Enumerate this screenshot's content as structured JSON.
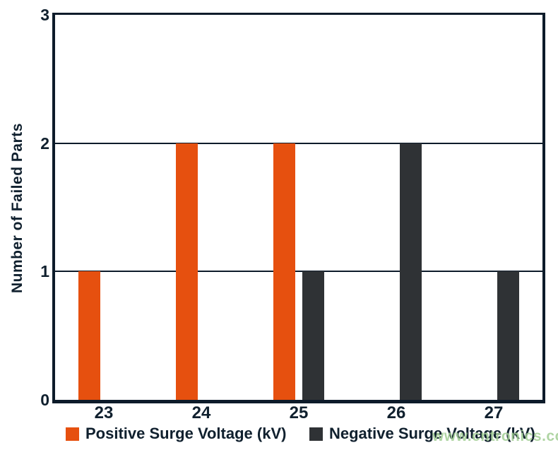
{
  "page": {
    "background": "#ffffff"
  },
  "watermark": {
    "text": "www.cntronics.com",
    "color": "#a2ce94"
  },
  "chart_data": {
    "type": "bar",
    "title": "",
    "xlabel": "",
    "ylabel": "Number of Failed Parts",
    "categories": [
      "23",
      "24",
      "25",
      "26",
      "27"
    ],
    "series": [
      {
        "name": "Positive Surge Voltage (kV)",
        "color": "#E6500F",
        "values": [
          1,
          2,
          2,
          0,
          0
        ]
      },
      {
        "name": "Negative Surge Voltage (kV)",
        "color": "#2F3235",
        "values": [
          0,
          0,
          1,
          2,
          1
        ]
      }
    ],
    "ylim": [
      0,
      3
    ],
    "yticks": [
      0,
      1,
      2,
      3
    ],
    "gridlines": [
      1,
      2
    ],
    "grid": true,
    "legend_position": "bottom",
    "axis_color": "#0D1B2A",
    "text_color": "#10202E"
  }
}
